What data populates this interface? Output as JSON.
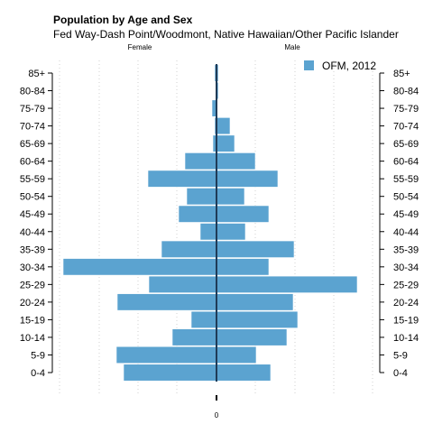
{
  "chart_data": {
    "type": "bar",
    "orientation": "population-pyramid",
    "title": "Population by Age and Sex",
    "subtitle": "Fed Way-Dash Point/Woodmont, Native Hawaiian/Other Pacific Islander",
    "left_label": "Female",
    "right_label": "Male",
    "categories": [
      "0-4",
      "5-9",
      "10-14",
      "15-19",
      "20-24",
      "25-29",
      "30-34",
      "35-39",
      "40-44",
      "45-49",
      "50-54",
      "55-59",
      "60-64",
      "65-69",
      "70-74",
      "75-79",
      "80-84",
      "85+"
    ],
    "series": [
      {
        "name": "OFM, 2012",
        "color": "#5ba3d0",
        "female": [
          103,
          111,
          49,
          28,
          110,
          75,
          170,
          61,
          18,
          42,
          33,
          76,
          35,
          4,
          2,
          5,
          1,
          2
        ],
        "male": [
          60,
          44,
          78,
          90,
          85,
          156,
          58,
          86,
          32,
          58,
          31,
          68,
          43,
          20,
          15,
          1,
          2,
          2
        ]
      }
    ],
    "legend_position": "top-right",
    "x_tick_labels": [
      "0"
    ],
    "grid": "dotted vertical",
    "xlim": [
      -175,
      180
    ]
  }
}
